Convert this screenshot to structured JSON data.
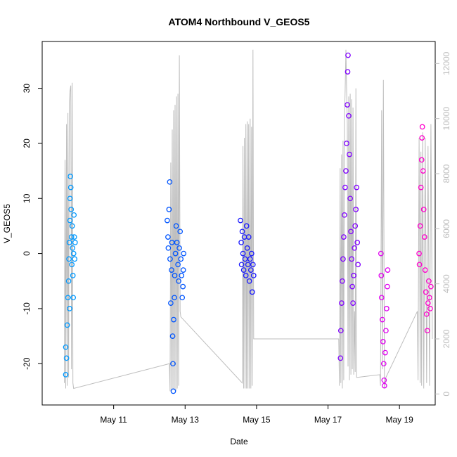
{
  "chart_data": {
    "type": "scatter",
    "title": "ATOM4 Northbound V_GEOS5",
    "xlabel": "Date",
    "ylabel": "V_GEOS5",
    "x_ticks": [
      {
        "label": "May 11",
        "day": 11
      },
      {
        "label": "May 13",
        "day": 13
      },
      {
        "label": "May 15",
        "day": 15
      },
      {
        "label": "May 17",
        "day": 17
      },
      {
        "label": "May 19",
        "day": 19
      }
    ],
    "xlim": [
      9.0,
      20.0
    ],
    "ylim": [
      -27.5,
      38.5
    ],
    "y_ticks": [
      -20,
      -10,
      0,
      10,
      20,
      30
    ],
    "y2lim": [
      -400,
      12800
    ],
    "y2_ticks": [
      0,
      2000,
      4000,
      6000,
      8000,
      10000,
      12000
    ],
    "y2_color": "#bdbdbd",
    "altitude_color": "#bdbdbd",
    "grid": false,
    "series": [
      {
        "color": "#0099ff",
        "points": [
          [
            9.66,
            -17
          ],
          [
            9.66,
            -22
          ],
          [
            9.68,
            -19
          ],
          [
            9.7,
            -13
          ],
          [
            9.72,
            -8
          ],
          [
            9.74,
            -5
          ],
          [
            9.75,
            -1
          ],
          [
            9.76,
            2
          ],
          [
            9.77,
            -10
          ],
          [
            9.78,
            6
          ],
          [
            9.78,
            10
          ],
          [
            9.79,
            14
          ],
          [
            9.8,
            12
          ],
          [
            9.81,
            8
          ],
          [
            9.82,
            3
          ],
          [
            9.83,
            -2
          ],
          [
            9.84,
            5
          ],
          [
            9.85,
            1
          ],
          [
            9.86,
            -4
          ],
          [
            9.87,
            -8
          ],
          [
            9.88,
            0
          ],
          [
            9.89,
            7
          ],
          [
            9.9,
            3
          ],
          [
            9.91,
            -1
          ],
          [
            9.92,
            2
          ]
        ]
      },
      {
        "color": "#0055ff",
        "points": [
          [
            12.5,
            6
          ],
          [
            12.52,
            3
          ],
          [
            12.53,
            1
          ],
          [
            12.55,
            8
          ],
          [
            12.57,
            13
          ],
          [
            12.58,
            -1
          ],
          [
            12.6,
            -9
          ],
          [
            12.62,
            -3
          ],
          [
            12.63,
            2
          ],
          [
            12.65,
            -15
          ],
          [
            12.66,
            -20
          ],
          [
            12.67,
            -25
          ],
          [
            12.68,
            -12
          ],
          [
            12.7,
            -8
          ],
          [
            12.71,
            -4
          ],
          [
            12.73,
            0
          ],
          [
            12.75,
            5
          ],
          [
            12.77,
            2
          ],
          [
            12.8,
            -2
          ],
          [
            12.82,
            -5
          ],
          [
            12.84,
            1
          ],
          [
            12.86,
            4
          ],
          [
            12.88,
            -1
          ],
          [
            12.9,
            -4
          ],
          [
            12.92,
            -8
          ],
          [
            12.94,
            -6
          ],
          [
            12.95,
            -3
          ],
          [
            12.96,
            0
          ]
        ]
      },
      {
        "color": "#1a1aff",
        "points": [
          [
            14.55,
            6
          ],
          [
            14.57,
            2
          ],
          [
            14.58,
            -2
          ],
          [
            14.6,
            4
          ],
          [
            14.62,
            0
          ],
          [
            14.64,
            -3
          ],
          [
            14.66,
            3
          ],
          [
            14.68,
            -1
          ],
          [
            14.7,
            -4
          ],
          [
            14.72,
            5
          ],
          [
            14.74,
            1
          ],
          [
            14.76,
            -2
          ],
          [
            14.78,
            3
          ],
          [
            14.8,
            -5
          ],
          [
            14.82,
            -1
          ],
          [
            14.84,
            -3
          ],
          [
            14.86,
            0
          ],
          [
            14.88,
            -7
          ],
          [
            14.9,
            -2
          ],
          [
            14.92,
            -4
          ]
        ]
      },
      {
        "color": "#8000ff",
        "points": [
          [
            17.35,
            -19
          ],
          [
            17.36,
            -14
          ],
          [
            17.38,
            -9
          ],
          [
            17.4,
            -5
          ],
          [
            17.42,
            -1
          ],
          [
            17.44,
            3
          ],
          [
            17.46,
            7
          ],
          [
            17.48,
            12
          ],
          [
            17.5,
            15
          ],
          [
            17.52,
            20
          ],
          [
            17.54,
            27
          ],
          [
            17.55,
            33
          ],
          [
            17.56,
            36
          ],
          [
            17.58,
            25
          ],
          [
            17.6,
            18
          ],
          [
            17.62,
            10
          ],
          [
            17.64,
            4
          ],
          [
            17.66,
            -1
          ],
          [
            17.68,
            -6
          ],
          [
            17.7,
            -9
          ],
          [
            17.72,
            -4
          ],
          [
            17.74,
            1
          ],
          [
            17.76,
            5
          ],
          [
            17.78,
            8
          ],
          [
            17.8,
            12
          ],
          [
            17.82,
            2
          ],
          [
            17.84,
            -2
          ]
        ]
      },
      {
        "color": "#e000f0",
        "points": [
          [
            18.48,
            0
          ],
          [
            18.49,
            -4
          ],
          [
            18.5,
            -8
          ],
          [
            18.52,
            -12
          ],
          [
            18.54,
            -16
          ],
          [
            18.56,
            -20
          ],
          [
            18.57,
            -23
          ],
          [
            18.58,
            -24
          ],
          [
            18.6,
            -18
          ],
          [
            18.62,
            -14
          ],
          [
            18.64,
            -10
          ],
          [
            18.66,
            -6
          ],
          [
            18.67,
            -3
          ]
        ]
      },
      {
        "color": "#ff00cc",
        "points": [
          [
            19.55,
            0
          ],
          [
            19.56,
            -2
          ],
          [
            19.58,
            5
          ],
          [
            19.6,
            12
          ],
          [
            19.62,
            17
          ],
          [
            19.63,
            21
          ],
          [
            19.64,
            23
          ],
          [
            19.66,
            15
          ],
          [
            19.68,
            8
          ],
          [
            19.7,
            3
          ],
          [
            19.72,
            -3
          ],
          [
            19.74,
            -7
          ],
          [
            19.76,
            -11
          ],
          [
            19.78,
            -14
          ],
          [
            19.8,
            -9
          ],
          [
            19.82,
            -5
          ],
          [
            19.84,
            -8
          ],
          [
            19.86,
            -10
          ],
          [
            19.88,
            -6
          ]
        ]
      }
    ],
    "altitude": [
      [
        9.62,
        400
      ],
      [
        9.64,
        8500
      ],
      [
        9.66,
        200
      ],
      [
        9.68,
        9800
      ],
      [
        9.7,
        300
      ],
      [
        9.72,
        10200
      ],
      [
        9.74,
        600
      ],
      [
        9.76,
        10600
      ],
      [
        9.78,
        11000
      ],
      [
        9.8,
        11200
      ],
      [
        9.82,
        900
      ],
      [
        9.84,
        11300
      ],
      [
        9.86,
        400
      ],
      [
        9.88,
        200
      ],
      [
        12.56,
        1100
      ],
      [
        12.58,
        100
      ],
      [
        12.6,
        8400
      ],
      [
        12.62,
        100
      ],
      [
        12.64,
        9600
      ],
      [
        12.66,
        200
      ],
      [
        12.68,
        10300
      ],
      [
        12.7,
        150
      ],
      [
        12.72,
        10500
      ],
      [
        12.74,
        100
      ],
      [
        12.76,
        10800
      ],
      [
        12.78,
        200
      ],
      [
        12.8,
        10900
      ],
      [
        12.82,
        300
      ],
      [
        12.84,
        12300
      ],
      [
        12.86,
        3000
      ],
      [
        12.88,
        2800
      ],
      [
        14.6,
        400
      ],
      [
        14.62,
        9000
      ],
      [
        14.64,
        200
      ],
      [
        14.66,
        9300
      ],
      [
        14.68,
        200
      ],
      [
        14.7,
        9800
      ],
      [
        14.72,
        200
      ],
      [
        14.74,
        9900
      ],
      [
        14.76,
        200
      ],
      [
        14.78,
        9800
      ],
      [
        14.8,
        200
      ],
      [
        14.82,
        10000
      ],
      [
        14.84,
        200
      ],
      [
        14.86,
        9700
      ],
      [
        14.88,
        300
      ],
      [
        14.9,
        12500
      ],
      [
        14.92,
        2000
      ],
      [
        17.3,
        2000
      ],
      [
        17.32,
        300
      ],
      [
        17.34,
        8200
      ],
      [
        17.36,
        400
      ],
      [
        17.38,
        8700
      ],
      [
        17.4,
        200
      ],
      [
        17.42,
        9200
      ],
      [
        17.44,
        500
      ],
      [
        17.46,
        10000
      ],
      [
        17.48,
        11000
      ],
      [
        17.5,
        12500
      ],
      [
        17.52,
        11000
      ],
      [
        17.54,
        9800
      ],
      [
        17.56,
        1000
      ],
      [
        17.58,
        10800
      ],
      [
        17.6,
        500
      ],
      [
        17.62,
        10900
      ],
      [
        17.64,
        700
      ],
      [
        17.66,
        10700
      ],
      [
        17.68,
        900
      ],
      [
        17.7,
        10400
      ],
      [
        17.72,
        700
      ],
      [
        17.74,
        3000
      ],
      [
        17.76,
        800
      ],
      [
        17.78,
        11100
      ],
      [
        17.8,
        600
      ],
      [
        18.45,
        700
      ],
      [
        18.47,
        300
      ],
      [
        18.5,
        10300
      ],
      [
        18.52,
        900
      ],
      [
        18.55,
        11400
      ],
      [
        18.58,
        200
      ],
      [
        18.62,
        600
      ],
      [
        19.5,
        3000
      ],
      [
        19.52,
        500
      ],
      [
        19.55,
        9300
      ],
      [
        19.58,
        400
      ],
      [
        19.6,
        8800
      ],
      [
        19.62,
        300
      ],
      [
        19.65,
        9500
      ],
      [
        19.68,
        200
      ],
      [
        19.72,
        9300
      ],
      [
        19.76,
        400
      ],
      [
        19.8,
        9000
      ],
      [
        19.84,
        300
      ],
      [
        19.88,
        9800
      ],
      [
        19.92,
        2000
      ]
    ]
  }
}
